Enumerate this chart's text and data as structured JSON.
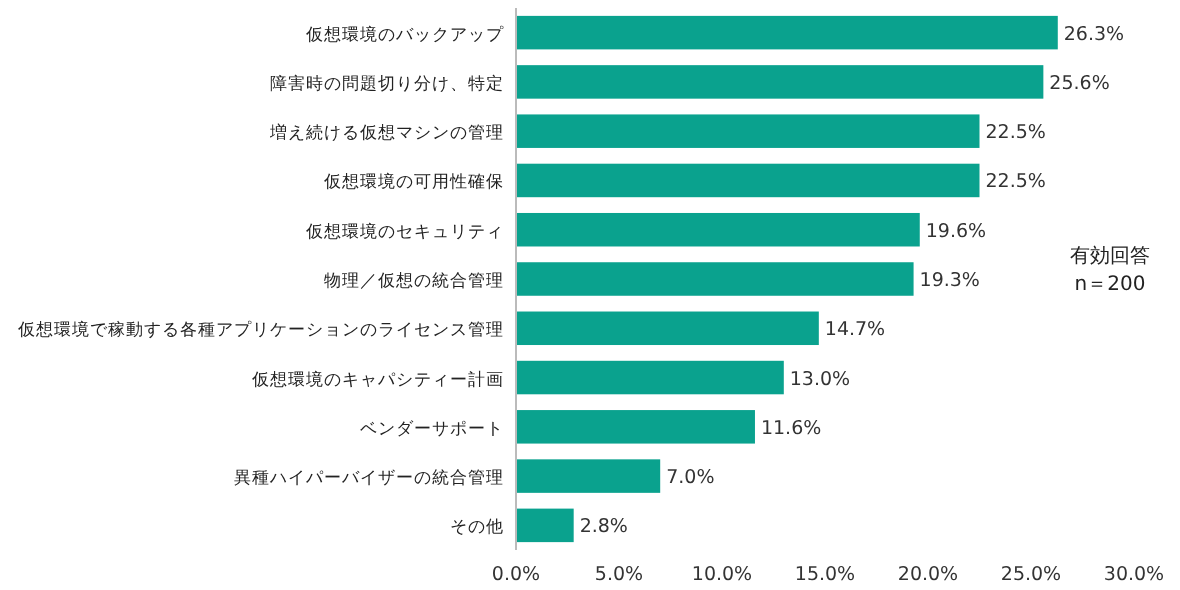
{
  "chart_data": {
    "type": "bar",
    "orientation": "horizontal",
    "categories": [
      "仮想環境のバックアップ",
      "障害時の問題切り分け、特定",
      "増え続ける仮想マシンの管理",
      "仮想環境の可用性確保",
      "仮想環境のセキュリティ",
      "物理／仮想の統合管理",
      "仮想環境で稼動する各種アプリケーションのライセンス管理",
      "仮想環境のキャパシティー計画",
      "ベンダーサポート",
      "異種ハイパーバイザーの統合管理",
      "その他"
    ],
    "values": [
      26.3,
      25.6,
      22.5,
      22.5,
      19.6,
      19.3,
      14.7,
      13.0,
      11.6,
      7.0,
      2.8
    ],
    "value_labels": [
      "26.3%",
      "25.6%",
      "22.5%",
      "22.5%",
      "19.6%",
      "19.3%",
      "14.7%",
      "13.0%",
      "11.6%",
      "7.0%",
      "2.8%"
    ],
    "color": "#0aa28e",
    "xlim": [
      0,
      30
    ],
    "xticks": [
      {
        "value": 0,
        "label": "0.0%"
      },
      {
        "value": 5,
        "label": "5.0%"
      },
      {
        "value": 10,
        "label": "10.0%"
      },
      {
        "value": 15,
        "label": "15.0%"
      },
      {
        "value": 20,
        "label": "20.0%"
      },
      {
        "value": 25,
        "label": "25.0%"
      },
      {
        "value": 30,
        "label": "30.0%"
      }
    ],
    "grid": false,
    "annotations": [
      "有効回答\nn＝200"
    ]
  }
}
